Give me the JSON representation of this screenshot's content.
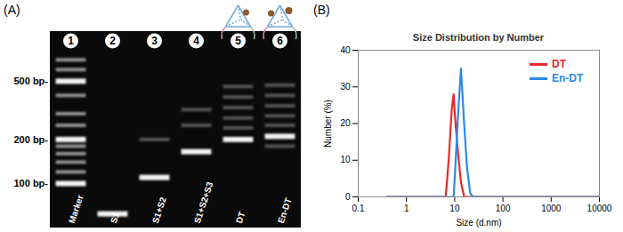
{
  "panel_labels": [
    "(A)",
    "(B)"
  ],
  "gel": {
    "bp_range": [
      50,
      1100
    ],
    "size_markers": [
      {
        "value": 500,
        "label": "500 bp-"
      },
      {
        "value": 200,
        "label": "200 bp-"
      },
      {
        "value": 100,
        "label": "100 bp-"
      }
    ],
    "lanes": [
      {
        "number": "1",
        "label": "Marker",
        "bands": [
          100,
          120,
          140,
          160,
          180,
          200,
          250,
          300,
          400,
          500,
          600,
          700
        ],
        "faint_bands": []
      },
      {
        "number": "2",
        "label": "S1",
        "bands": [
          62
        ],
        "faint_bands": []
      },
      {
        "number": "3",
        "label": "S1+S2",
        "bands": [
          110
        ],
        "faint_bands": [
          200
        ]
      },
      {
        "number": "4",
        "label": "S1+S2+S3",
        "bands": [
          165
        ],
        "faint_bands": [
          250,
          320
        ]
      },
      {
        "number": "5",
        "label": "DT",
        "bands": [
          200
        ],
        "faint_bands": [
          240,
          280,
          330,
          390,
          460
        ]
      },
      {
        "number": "6",
        "label": "En-DT",
        "bands": [
          210
        ],
        "faint_bands": [
          180,
          250,
          290,
          340,
          400,
          470
        ]
      }
    ]
  },
  "chart_data": {
    "type": "line",
    "title": "Size Distribution by Number",
    "x_label": "Size (d.nm)",
    "y_label": "Number (%)",
    "log": "x",
    "xlim": [
      0.1,
      10000
    ],
    "xticks": [
      0.1,
      1,
      10,
      100,
      1000,
      10000
    ],
    "ylim": [
      0,
      40
    ],
    "yticks": [
      0,
      10,
      20,
      30,
      40
    ],
    "grid": false,
    "legend": "top-right",
    "series": [
      {
        "name": "DT",
        "color": "#e8282b",
        "x": [
          0.4,
          5.6,
          6.5,
          7.5,
          8.7,
          9.5,
          10.1,
          11.7,
          13.5,
          15.7,
          18,
          10000
        ],
        "values": [
          0,
          0,
          0,
          10,
          24,
          28,
          22,
          12,
          4,
          0,
          0,
          0
        ]
      },
      {
        "name": "En-DT",
        "color": "#2b8ae6",
        "x": [
          0.4,
          8.5,
          9.5,
          10.1,
          11.7,
          13.5,
          15.7,
          18,
          21,
          24,
          10000
        ],
        "values": [
          0,
          0,
          0,
          6,
          22,
          35,
          20,
          8,
          1,
          0,
          0
        ]
      }
    ]
  }
}
